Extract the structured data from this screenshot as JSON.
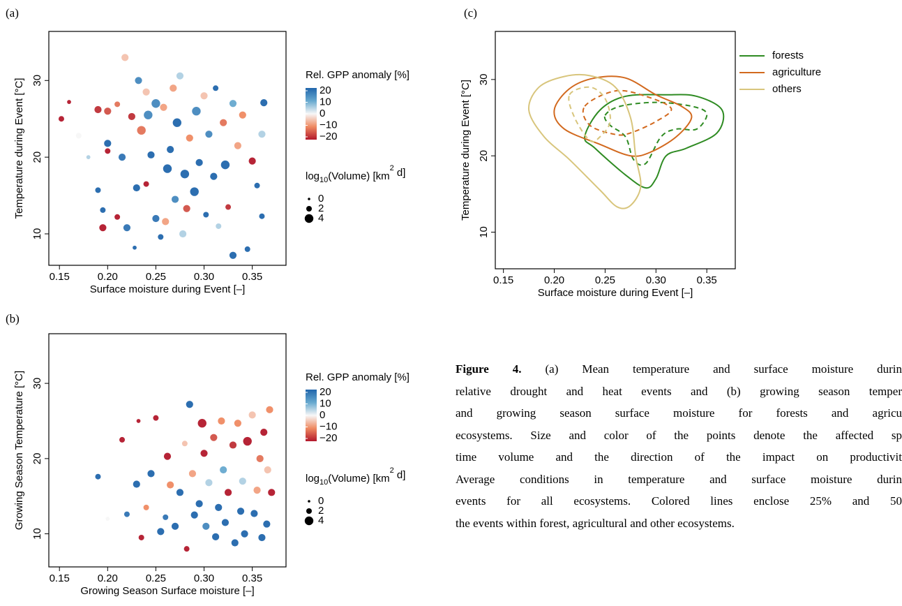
{
  "chart_data": [
    {
      "type": "scatter",
      "panel_label": "(a)",
      "xlabel": "Surface moisture during Event [–]",
      "ylabel": "Temperature during Event [°C]",
      "x": [
        0.152,
        0.16,
        0.17,
        0.18,
        0.19,
        0.19,
        0.195,
        0.195,
        0.2,
        0.2,
        0.2,
        0.21,
        0.21,
        0.215,
        0.218,
        0.22,
        0.225,
        0.228,
        0.23,
        0.232,
        0.235,
        0.24,
        0.24,
        0.242,
        0.245,
        0.25,
        0.25,
        0.255,
        0.258,
        0.26,
        0.262,
        0.265,
        0.268,
        0.27,
        0.272,
        0.275,
        0.278,
        0.28,
        0.282,
        0.285,
        0.29,
        0.292,
        0.295,
        0.3,
        0.302,
        0.305,
        0.31,
        0.312,
        0.315,
        0.32,
        0.322,
        0.325,
        0.33,
        0.33,
        0.335,
        0.34,
        0.345,
        0.35,
        0.355,
        0.36,
        0.362,
        0.36
      ],
      "y": [
        25.0,
        27.2,
        22.8,
        20,
        26.2,
        15.7,
        10.8,
        13.1,
        21.8,
        26,
        20.8,
        12.2,
        26.9,
        20,
        33,
        10.8,
        25.3,
        8.2,
        16,
        30,
        23.5,
        16.5,
        28.5,
        25.5,
        20.3,
        27,
        12,
        9.6,
        26.5,
        11.6,
        18.5,
        21,
        29,
        14.5,
        24.5,
        30.6,
        10,
        17.8,
        13.3,
        22.5,
        15.5,
        26,
        19.3,
        28,
        12.5,
        23,
        17.5,
        29,
        11,
        24.5,
        19,
        13.5,
        7.2,
        27,
        21.5,
        25.5,
        8,
        19.5,
        16.3,
        12.3,
        27.1,
        23
      ],
      "size": [
        2,
        1,
        2,
        1,
        3,
        2,
        3,
        2,
        3,
        3,
        2,
        2,
        2,
        3,
        3,
        3,
        3,
        1,
        3,
        3,
        4,
        2,
        3,
        4,
        3,
        4,
        3,
        2,
        3,
        3,
        4,
        3,
        3,
        3,
        4,
        3,
        3,
        4,
        3,
        3,
        4,
        4,
        3,
        3,
        2,
        3,
        3,
        2,
        2,
        3,
        4,
        2,
        3,
        3,
        3,
        3,
        2,
        3,
        2,
        2,
        3,
        3
      ],
      "gpp": [
        -20,
        -20,
        0,
        5,
        -18,
        20,
        -20,
        20,
        20,
        -15,
        -20,
        -20,
        -12,
        18,
        -5,
        18,
        -18,
        20,
        20,
        15,
        -12,
        -20,
        -5,
        15,
        20,
        15,
        18,
        20,
        -8,
        -8,
        20,
        20,
        -8,
        15,
        20,
        5,
        5,
        20,
        -15,
        -10,
        20,
        15,
        20,
        -5,
        20,
        15,
        20,
        20,
        5,
        -12,
        20,
        -18,
        20,
        10,
        -8,
        -10,
        20,
        -20,
        20,
        20,
        20,
        5
      ],
      "xlim": [
        0.139,
        0.385
      ],
      "ylim": [
        5.9,
        36.4
      ],
      "xticks": [
        0.15,
        {
          "value": 0.2,
          "label": "0.20"
        },
        0.25,
        {
          "value": 0.3,
          "label": "0.30"
        },
        0.35
      ],
      "yticks": [
        10,
        20,
        30
      ],
      "color_legend": {
        "title": "Rel. GPP anomaly [%]",
        "lim": [
          -20,
          20
        ],
        "colors": [
          "#b2182b",
          "#ef8a62",
          "#f7f7f7",
          "#67a9cf",
          "#2166ac"
        ],
        "ticks": [
          20,
          10,
          0,
          {
            "value": -10,
            "label": "−10"
          },
          {
            "value": -20,
            "label": "−20"
          }
        ]
      },
      "size_legend": {
        "title": [
          "log",
          "10",
          "(Volume) [km",
          "2",
          " d]"
        ],
        "values": [
          0,
          2,
          4
        ]
      }
    },
    {
      "type": "scatter",
      "panel_label": "(b)",
      "xlabel": "Growing Season Surface moisture [–]",
      "ylabel": "Growing Season Temperature [°C]",
      "x": [
        0.19,
        0.2,
        0.215,
        0.22,
        0.23,
        0.232,
        0.235,
        0.24,
        0.245,
        0.25,
        0.255,
        0.26,
        0.262,
        0.265,
        0.27,
        0.275,
        0.28,
        0.282,
        0.285,
        0.288,
        0.29,
        0.295,
        0.298,
        0.3,
        0.302,
        0.305,
        0.31,
        0.312,
        0.315,
        0.318,
        0.32,
        0.322,
        0.325,
        0.33,
        0.332,
        0.335,
        0.338,
        0.34,
        0.342,
        0.345,
        0.35,
        0.352,
        0.355,
        0.358,
        0.36,
        0.362,
        0.365,
        0.368,
        0.37,
        0.366
      ],
      "y": [
        17.6,
        12,
        22.5,
        12.6,
        16.6,
        25,
        9.5,
        13.5,
        18,
        25.4,
        10.3,
        12.2,
        20.3,
        16.5,
        11,
        15.5,
        22,
        8,
        27.2,
        18,
        12.5,
        14,
        24.7,
        20.7,
        11,
        16.8,
        22.8,
        9.6,
        13.5,
        25,
        18.5,
        11.5,
        15.5,
        21.8,
        8.8,
        24.7,
        13,
        17,
        10,
        22.3,
        25.8,
        12.7,
        15.8,
        20,
        9.5,
        23.5,
        11.3,
        26.5,
        15.5,
        18.5
      ],
      "size": [
        2,
        1,
        2,
        2,
        3,
        1,
        2,
        2,
        3,
        2,
        3,
        2,
        3,
        3,
        3,
        3,
        2,
        2,
        3,
        3,
        3,
        3,
        4,
        3,
        3,
        3,
        3,
        3,
        3,
        3,
        3,
        3,
        3,
        3,
        3,
        3,
        3,
        3,
        3,
        4,
        3,
        3,
        3,
        3,
        3,
        3,
        3,
        3,
        3,
        3
      ],
      "gpp": [
        20,
        0,
        -20,
        18,
        20,
        -20,
        -20,
        -10,
        20,
        -20,
        20,
        18,
        -20,
        -10,
        20,
        20,
        -5,
        -20,
        20,
        -8,
        20,
        20,
        -20,
        -20,
        15,
        5,
        -15,
        20,
        20,
        -10,
        10,
        20,
        -20,
        -18,
        20,
        -10,
        20,
        5,
        20,
        -20,
        -5,
        20,
        -8,
        -12,
        20,
        -20,
        20,
        -10,
        -20,
        -5
      ],
      "xlim": [
        0.139,
        0.385
      ],
      "ylim": [
        5.6,
        36.6
      ],
      "xticks": [
        0.15,
        {
          "value": 0.2,
          "label": "0.20"
        },
        0.25,
        {
          "value": 0.3,
          "label": "0.30"
        },
        0.35
      ],
      "yticks": [
        10,
        20,
        30
      ],
      "color_legend": {
        "title": "Rel. GPP anomaly [%]",
        "lim": [
          -20,
          20
        ],
        "colors": [
          "#b2182b",
          "#ef8a62",
          "#f7f7f7",
          "#67a9cf",
          "#2166ac"
        ],
        "ticks": [
          20,
          10,
          0,
          {
            "value": -10,
            "label": "−10"
          },
          {
            "value": -20,
            "label": "−20"
          }
        ]
      },
      "size_legend": {
        "title": [
          "log",
          "10",
          "(Volume) [km",
          "2",
          " d]"
        ],
        "values": [
          0,
          2,
          4
        ]
      }
    },
    {
      "type": "contour",
      "panel_label": "(c)",
      "xlabel": "Surface moisture during Event [–]",
      "ylabel": "Temperature during Event [°C]",
      "xlim": [
        0.142,
        0.378
      ],
      "ylim": [
        5.2,
        36.3
      ],
      "xticks": [
        0.15,
        {
          "value": 0.2,
          "label": "0.20"
        },
        0.25,
        {
          "value": 0.3,
          "label": "0.30"
        },
        0.35
      ],
      "yticks": [
        10,
        20,
        30
      ],
      "series": [
        {
          "name": "forests",
          "color": "#2e8b22",
          "outer": {
            "x": [
              0.23,
              0.245,
              0.27,
              0.31,
              0.34,
              0.365,
              0.36,
              0.33,
              0.31,
              0.3,
              0.29,
              0.27,
              0.24
            ],
            "y": [
              22.5,
              26,
              27.8,
              28,
              27.8,
              26,
              23,
              21,
              20,
              17,
              15.8,
              17.5,
              21
            ]
          },
          "inner": {
            "x": [
              0.25,
              0.265,
              0.3,
              0.335,
              0.35,
              0.34,
              0.32,
              0.305,
              0.29,
              0.278,
              0.27,
              0.255
            ],
            "y": [
              25.3,
              26.5,
              27,
              26.5,
              25.5,
              23.5,
              23.5,
              22.5,
              19,
              19.5,
              22.5,
              24
            ]
          }
        },
        {
          "name": "agriculture",
          "color": "#d2691e",
          "outer": {
            "x": [
              0.2,
              0.215,
              0.24,
              0.27,
              0.3,
              0.325,
              0.335,
              0.32,
              0.295,
              0.275,
              0.245,
              0.21
            ],
            "y": [
              26,
              28.8,
              30.2,
              30.2,
              28,
              26.5,
              25,
              22.5,
              20.5,
              20,
              21.5,
              23.5
            ]
          },
          "inner": {
            "x": [
              0.23,
              0.26,
              0.29,
              0.315,
              0.3,
              0.275,
              0.26,
              0.235
            ],
            "y": [
              26.5,
              28.5,
              27.8,
              26.2,
              24.5,
              23,
              22.8,
              24
            ]
          }
        },
        {
          "name": "others",
          "color": "#d8c57c",
          "outer": {
            "x": [
              0.175,
              0.185,
              0.21,
              0.235,
              0.26,
              0.275,
              0.28,
              0.285,
              0.275,
              0.262,
              0.245,
              0.215,
              0.19
            ],
            "y": [
              26,
              29,
              30.4,
              30.5,
              29,
              25,
              20,
              16,
              13.5,
              13.3,
              15.5,
              19.5,
              22.5
            ]
          },
          "inner": {
            "x": [
              0.215,
              0.235,
              0.25,
              0.255,
              0.245,
              0.235,
              0.22
            ],
            "y": [
              28,
              29,
              27.5,
              24.5,
              22.5,
              22,
              25
            ]
          }
        }
      ]
    }
  ],
  "caption": {
    "figure_label": "Figure 4.",
    "lines": [
      " (a) Mean temperature and surface moisture durin",
      "relative drought and heat events and (b) growing season temper",
      "and growing season surface moisture for forests and agricu",
      "ecosystems. Size and color of the points denote the affected sp",
      "time volume and the direction of the impact on productivit",
      "Average conditions in temperature and surface moisture durin",
      "events for all ecosystems. Colored lines enclose 25% and 50",
      "the events within forest, agricultural and other ecosystems."
    ]
  }
}
